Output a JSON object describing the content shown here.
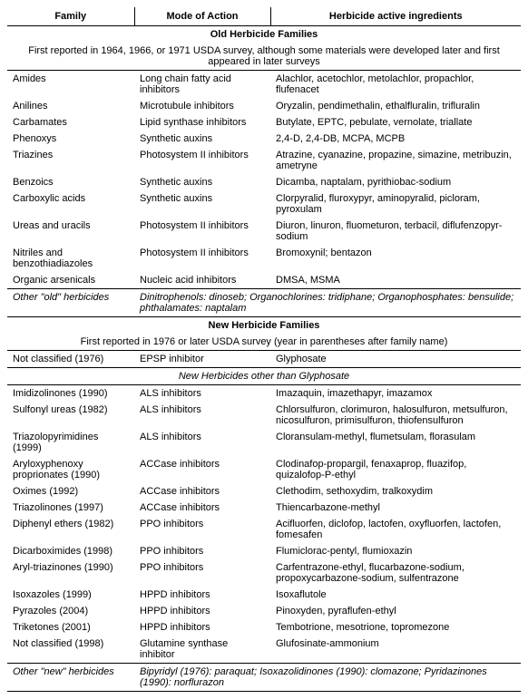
{
  "headers": {
    "family": "Family",
    "mode": "Mode of Action",
    "ingredients": "Herbicide active ingredients"
  },
  "sections": [
    {
      "title": "Old Herbicide Families",
      "subtitle": "First reported in 1964, 1966, or 1971 USDA survey, although some materials were developed later and first appeared in later surveys",
      "groups": [
        {
          "rows": [
            {
              "family": "Amides",
              "mode": "Long chain fatty acid inhibitors",
              "ing": "Alachlor, acetochlor, metolachlor, propachlor, flufenacet"
            },
            {
              "family": "Anilines",
              "mode": "Microtubule inhibitors",
              "ing": "Oryzalin, pendimethalin, ethalfluralin, trifluralin"
            },
            {
              "family": "Carbamates",
              "mode": "Lipid synthase inhibitors",
              "ing": "Butylate, EPTC, pebulate, vernolate, triallate"
            },
            {
              "family": "Phenoxys",
              "mode": "Synthetic auxins",
              "ing": "2,4-D, 2,4-DB, MCPA, MCPB"
            },
            {
              "family": "Triazines",
              "mode": "Photosystem II inhibitors",
              "ing": "Atrazine, cyanazine, propazine, simazine, metribuzin, ametryne"
            },
            {
              "family": "Benzoics",
              "mode": "Synthetic auxins",
              "ing": "Dicamba, naptalam, pyrithiobac-sodium"
            },
            {
              "family": "Carboxylic acids",
              "mode": "Synthetic auxins",
              "ing": "Clorpyralid, fluroxypyr, aminopyralid, picloram, pyroxulam"
            },
            {
              "family": "Ureas and uracils",
              "mode": "Photosystem II inhibitors",
              "ing": "Diuron, linuron, fluometuron, terbacil, diflufenzopyr-sodium"
            },
            {
              "family": "Nitriles and benzothiadiazoles",
              "mode": "Photosystem II inhibitors",
              "ing": "Bromoxynil; bentazon"
            },
            {
              "family": "Organic arsenicals",
              "mode": "Nucleic acid inhibitors",
              "ing": "DMSA, MSMA"
            }
          ]
        }
      ],
      "other": {
        "label": "Other \"old\" herbicides",
        "text": "Dinitrophenols: dinoseb; Organochlorines: tridiphane; Organophosphates: bensulide; phthalamates: naptalam"
      }
    },
    {
      "title": "New Herbicide Families",
      "subtitle": "First reported in 1976 or later USDA survey (year in parentheses after family name)",
      "groups": [
        {
          "rows": [
            {
              "family": "Not classified (1976)",
              "mode": "EPSP inhibitor",
              "ing": "Glyphosate"
            }
          ]
        },
        {
          "heading": "New Herbicides other than Glyphosate",
          "rows": [
            {
              "family": "Imidizolinones (1990)",
              "mode": "ALS inhibitors",
              "ing": "Imazaquin, imazethapyr, imazamox"
            },
            {
              "family": "Sulfonyl ureas (1982)",
              "mode": "ALS inhibitors",
              "ing": "Chlorsulfuron, clorimuron, halosulfuron, metsulfuron, nicosulfuron, primisulfuron, thiofensulfuron"
            },
            {
              "family": "Triazolopyrimidines (1999)",
              "mode": "ALS inhibitors",
              "ing": "Cloransulam-methyl, flumetsulam, florasulam"
            },
            {
              "family": "Aryloxyphenoxy proprionates (1990)",
              "mode": "ACCase inhibitors",
              "ing": "Clodinafop-propargil, fenaxaprop, fluazifop, quizalofop-P-ethyl"
            },
            {
              "family": "Oximes (1992)",
              "mode": "ACCase inhibitors",
              "ing": "Clethodim, sethoxydim, tralkoxydim"
            },
            {
              "family": "Triazolinones (1997)",
              "mode": "ACCase inhibitors",
              "ing": "Thiencarbazone-methyl"
            },
            {
              "family": "Diphenyl ethers (1982)",
              "mode": "PPO inhibitors",
              "ing": "Acifluorfen, diclofop, lactofen, oxyfluorfen, lactofen, fomesafen"
            },
            {
              "family": "Dicarboximides (1998)",
              "mode": "PPO inhibitors",
              "ing": "Flumiclorac-pentyl, flumioxazin"
            },
            {
              "family": "Aryl-triazinones (1990)",
              "mode": "PPO inhibitors",
              "ing": "Carfentrazone-ethyl, flucarbazone-sodium, propoxycarbazone-sodium, sulfentrazone"
            },
            {
              "family": "Isoxazoles (1999)",
              "mode": "HPPD inhibitors",
              "ing": "Isoxaflutole"
            },
            {
              "family": "Pyrazoles (2004)",
              "mode": "HPPD inhibitors",
              "ing": "Pinoxyden, pyraflufen-ethyl"
            },
            {
              "family": "Triketones (2001)",
              "mode": "HPPD inhibitors",
              "ing": "Tembotrione, mesotrione, topromezone"
            },
            {
              "family": "Not classified (1998)",
              "mode": "Glutamine synthase inhibitor",
              "ing": "Glufosinate-ammonium"
            }
          ]
        }
      ],
      "other": {
        "label": "Other \"new\" herbicides",
        "text": "Bipyridyl (1976): paraquat; Isoxazolidinones (1990): clomazone; Pyridazinones (1990): norflurazon"
      }
    }
  ]
}
